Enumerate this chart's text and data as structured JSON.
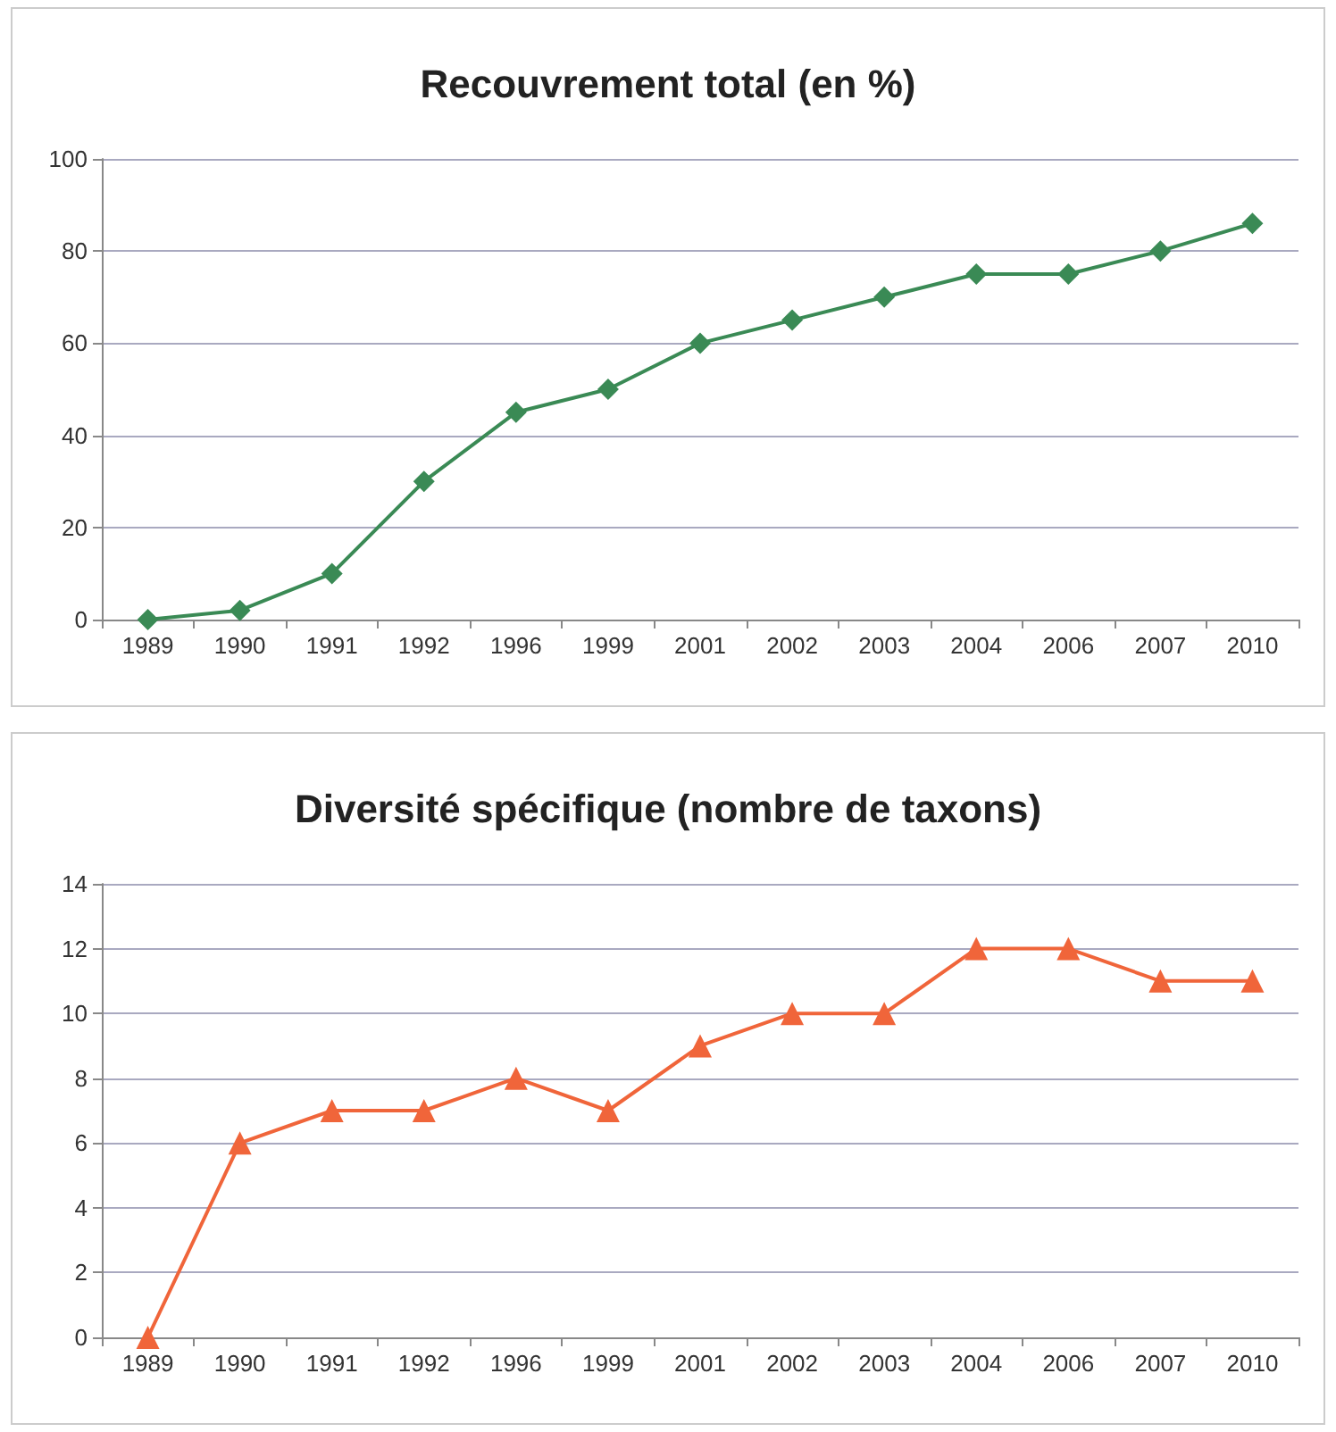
{
  "chart_data": [
    {
      "type": "line",
      "title": "Recouvrement total (en %)",
      "categories": [
        "1989",
        "1990",
        "1991",
        "1992",
        "1996",
        "1999",
        "2001",
        "2002",
        "2003",
        "2004",
        "2006",
        "2007",
        "2010"
      ],
      "series": [
        {
          "color": "#3a8a55",
          "values": [
            0,
            2,
            10,
            30,
            45,
            50,
            60,
            65,
            70,
            75,
            75,
            80,
            86
          ]
        }
      ],
      "ylim": [
        0,
        100
      ],
      "yticks": [
        0,
        20,
        40,
        60,
        80,
        100
      ],
      "grid": "y",
      "marker": "diamond"
    },
    {
      "type": "line",
      "title": "Diversité spécifique (nombre de taxons)",
      "categories": [
        "1989",
        "1990",
        "1991",
        "1992",
        "1996",
        "1999",
        "2001",
        "2002",
        "2003",
        "2004",
        "2006",
        "2007",
        "2010"
      ],
      "series": [
        {
          "color": "#f0653a",
          "values": [
            0,
            6,
            7,
            7,
            8,
            7,
            9,
            10,
            10,
            12,
            12,
            11,
            11
          ]
        }
      ],
      "ylim": [
        0,
        14
      ],
      "yticks": [
        0,
        2,
        4,
        6,
        8,
        10,
        12,
        14
      ],
      "grid": "y",
      "marker": "triangle"
    }
  ]
}
